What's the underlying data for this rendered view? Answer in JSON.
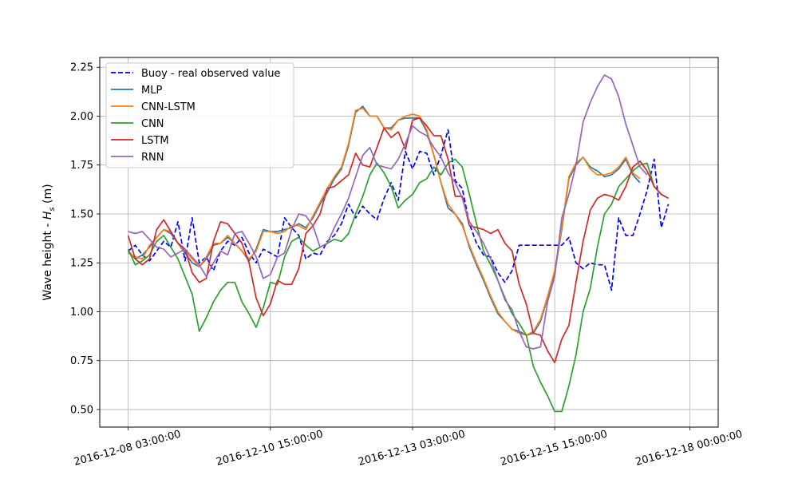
{
  "chart_data": {
    "type": "line",
    "ylabel_prefix": "Wave height - ",
    "ylabel_sym": "H",
    "ylabel_sub": "s",
    "ylabel_suffix": " (m)",
    "ylim": [
      0.41,
      2.3
    ],
    "y_ticks": [
      0.5,
      0.75,
      1.0,
      1.25,
      1.5,
      1.75,
      2.0,
      2.25
    ],
    "y_tick_labels": [
      "0.50",
      "0.75",
      "1.00",
      "1.25",
      "1.50",
      "1.75",
      "2.00",
      "2.25"
    ],
    "x_ticks": [
      0,
      20,
      40,
      60,
      79
    ],
    "x_tick_labels": [
      "2016-12-08 03:00:00",
      "2016-12-10 15:00:00",
      "2016-12-13 03:00:00",
      "2016-12-15 15:00:00",
      "2016-12-18 00:00:00"
    ],
    "xlim": [
      -4,
      83
    ],
    "grid": true,
    "legend": "top-left",
    "series": [
      {
        "name": "Buoy - real observed value",
        "color": "#0000ff",
        "dash": true,
        "values": [
          1.31,
          1.34,
          1.29,
          1.26,
          1.31,
          1.36,
          1.33,
          1.46,
          1.26,
          1.48,
          1.25,
          1.28,
          1.21,
          1.31,
          1.36,
          1.34,
          1.38,
          1.3,
          1.25,
          1.32,
          1.3,
          1.28,
          1.48,
          1.43,
          1.39,
          1.27,
          1.3,
          1.29,
          1.36,
          1.39,
          1.45,
          1.55,
          1.48,
          1.54,
          1.5,
          1.47,
          1.58,
          1.66,
          1.57,
          1.82,
          1.73,
          1.82,
          1.81,
          1.7,
          1.8,
          1.93,
          1.67,
          1.63,
          1.45,
          1.35,
          1.29,
          1.28,
          1.2,
          1.15,
          1.21,
          1.34,
          1.34,
          1.34,
          1.34,
          1.34,
          1.34,
          1.34,
          1.38,
          1.25,
          1.22,
          1.25,
          1.24,
          1.24,
          1.11,
          1.48,
          1.39,
          1.39,
          1.5,
          1.62,
          1.78,
          1.43,
          1.55
        ]
      },
      {
        "name": "MLP",
        "color": "#1f77b4",
        "dash": false,
        "values": [
          1.31,
          1.27,
          1.29,
          1.33,
          1.38,
          1.42,
          1.4,
          1.35,
          1.3,
          1.25,
          1.23,
          1.27,
          1.34,
          1.35,
          1.38,
          1.35,
          1.31,
          1.26,
          1.32,
          1.42,
          1.41,
          1.41,
          1.42,
          1.43,
          1.45,
          1.43,
          1.48,
          1.55,
          1.61,
          1.68,
          1.73,
          1.85,
          2.02,
          2.05,
          2.0,
          2.0,
          1.94,
          1.94,
          1.98,
          1.99,
          1.99,
          1.99,
          1.92,
          1.8,
          1.66,
          1.53,
          1.5,
          1.45,
          1.33,
          1.24,
          1.16,
          1.07,
          0.99,
          0.95,
          0.91,
          0.9,
          0.88,
          0.89,
          0.95,
          1.07,
          1.2,
          1.42,
          1.68,
          1.75,
          1.79,
          1.74,
          1.72,
          1.69,
          1.7,
          1.73,
          1.78,
          1.7,
          1.66
        ]
      },
      {
        "name": "CNN-LSTM",
        "color": "#ff7f0e",
        "dash": false,
        "values": [
          1.3,
          1.28,
          1.27,
          1.34,
          1.38,
          1.42,
          1.41,
          1.35,
          1.31,
          1.27,
          1.23,
          1.28,
          1.35,
          1.35,
          1.39,
          1.35,
          1.31,
          1.27,
          1.31,
          1.41,
          1.41,
          1.4,
          1.41,
          1.44,
          1.44,
          1.42,
          1.49,
          1.56,
          1.63,
          1.69,
          1.74,
          1.86,
          2.03,
          2.04,
          2.0,
          2.0,
          1.94,
          1.93,
          1.98,
          2.0,
          2.01,
          2.0,
          1.93,
          1.8,
          1.66,
          1.55,
          1.5,
          1.44,
          1.34,
          1.25,
          1.17,
          1.08,
          1.0,
          0.95,
          0.91,
          0.89,
          0.88,
          0.9,
          0.96,
          1.08,
          1.21,
          1.43,
          1.69,
          1.76,
          1.79,
          1.73,
          1.7,
          1.7,
          1.71,
          1.74,
          1.79,
          1.71,
          1.68
        ]
      },
      {
        "name": "CNN",
        "color": "#2ca02c",
        "dash": false,
        "values": [
          1.32,
          1.24,
          1.26,
          1.29,
          1.36,
          1.39,
          1.33,
          1.27,
          1.18,
          1.09,
          0.9,
          0.97,
          1.05,
          1.11,
          1.15,
          1.15,
          1.05,
          0.99,
          0.92,
          1.02,
          1.15,
          1.14,
          1.28,
          1.36,
          1.38,
          1.34,
          1.31,
          1.33,
          1.35,
          1.37,
          1.36,
          1.4,
          1.5,
          1.59,
          1.7,
          1.76,
          1.71,
          1.64,
          1.53,
          1.57,
          1.6,
          1.66,
          1.68,
          1.74,
          1.7,
          1.76,
          1.78,
          1.74,
          1.6,
          1.45,
          1.31,
          1.24,
          1.16,
          1.07,
          0.99,
          0.94,
          0.88,
          0.72,
          0.64,
          0.57,
          0.49,
          0.49,
          0.62,
          0.78,
          1.0,
          1.12,
          1.33,
          1.5,
          1.55,
          1.64,
          1.68,
          1.72,
          1.75,
          1.76,
          1.64,
          1.6,
          1.58
        ]
      },
      {
        "name": "LSTM",
        "color": "#d62728",
        "dash": false,
        "values": [
          1.39,
          1.27,
          1.24,
          1.27,
          1.42,
          1.47,
          1.41,
          1.35,
          1.32,
          1.2,
          1.15,
          1.17,
          1.36,
          1.46,
          1.45,
          1.4,
          1.35,
          1.25,
          1.07,
          0.98,
          1.04,
          1.16,
          1.14,
          1.14,
          1.22,
          1.4,
          1.44,
          1.5,
          1.63,
          1.64,
          1.67,
          1.7,
          1.81,
          1.75,
          1.74,
          1.84,
          1.94,
          1.89,
          1.92,
          1.83,
          1.98,
          1.99,
          1.95,
          1.9,
          1.9,
          1.78,
          1.59,
          1.59,
          1.44,
          1.43,
          1.42,
          1.4,
          1.42,
          1.35,
          1.31,
          1.14,
          1.04,
          0.89,
          0.88,
          0.8,
          0.74,
          0.86,
          0.93,
          1.15,
          1.36,
          1.52,
          1.58,
          1.6,
          1.59,
          1.57,
          1.64,
          1.74,
          1.77,
          1.72,
          1.64,
          1.6,
          1.58
        ]
      },
      {
        "name": "RNN",
        "color": "#9467bd",
        "dash": false,
        "values": [
          1.41,
          1.4,
          1.41,
          1.37,
          1.33,
          1.32,
          1.28,
          1.3,
          1.32,
          1.28,
          1.24,
          1.18,
          1.25,
          1.31,
          1.29,
          1.4,
          1.41,
          1.35,
          1.28,
          1.17,
          1.19,
          1.28,
          1.3,
          1.42,
          1.5,
          1.49,
          1.44,
          1.33,
          1.35,
          1.43,
          1.5,
          1.58,
          1.69,
          1.8,
          1.84,
          1.75,
          1.74,
          1.73,
          1.78,
          1.86,
          1.95,
          1.92,
          1.9,
          1.84,
          1.79,
          1.71,
          1.66,
          1.58,
          1.46,
          1.41,
          1.35,
          1.27,
          1.16,
          1.06,
          1.01,
          0.9,
          0.82,
          0.81,
          0.82,
          1.05,
          1.18,
          1.48,
          1.6,
          1.75,
          1.97,
          2.07,
          2.15,
          2.21,
          2.19,
          2.1,
          1.96,
          1.85,
          1.74,
          1.7
        ]
      }
    ]
  }
}
